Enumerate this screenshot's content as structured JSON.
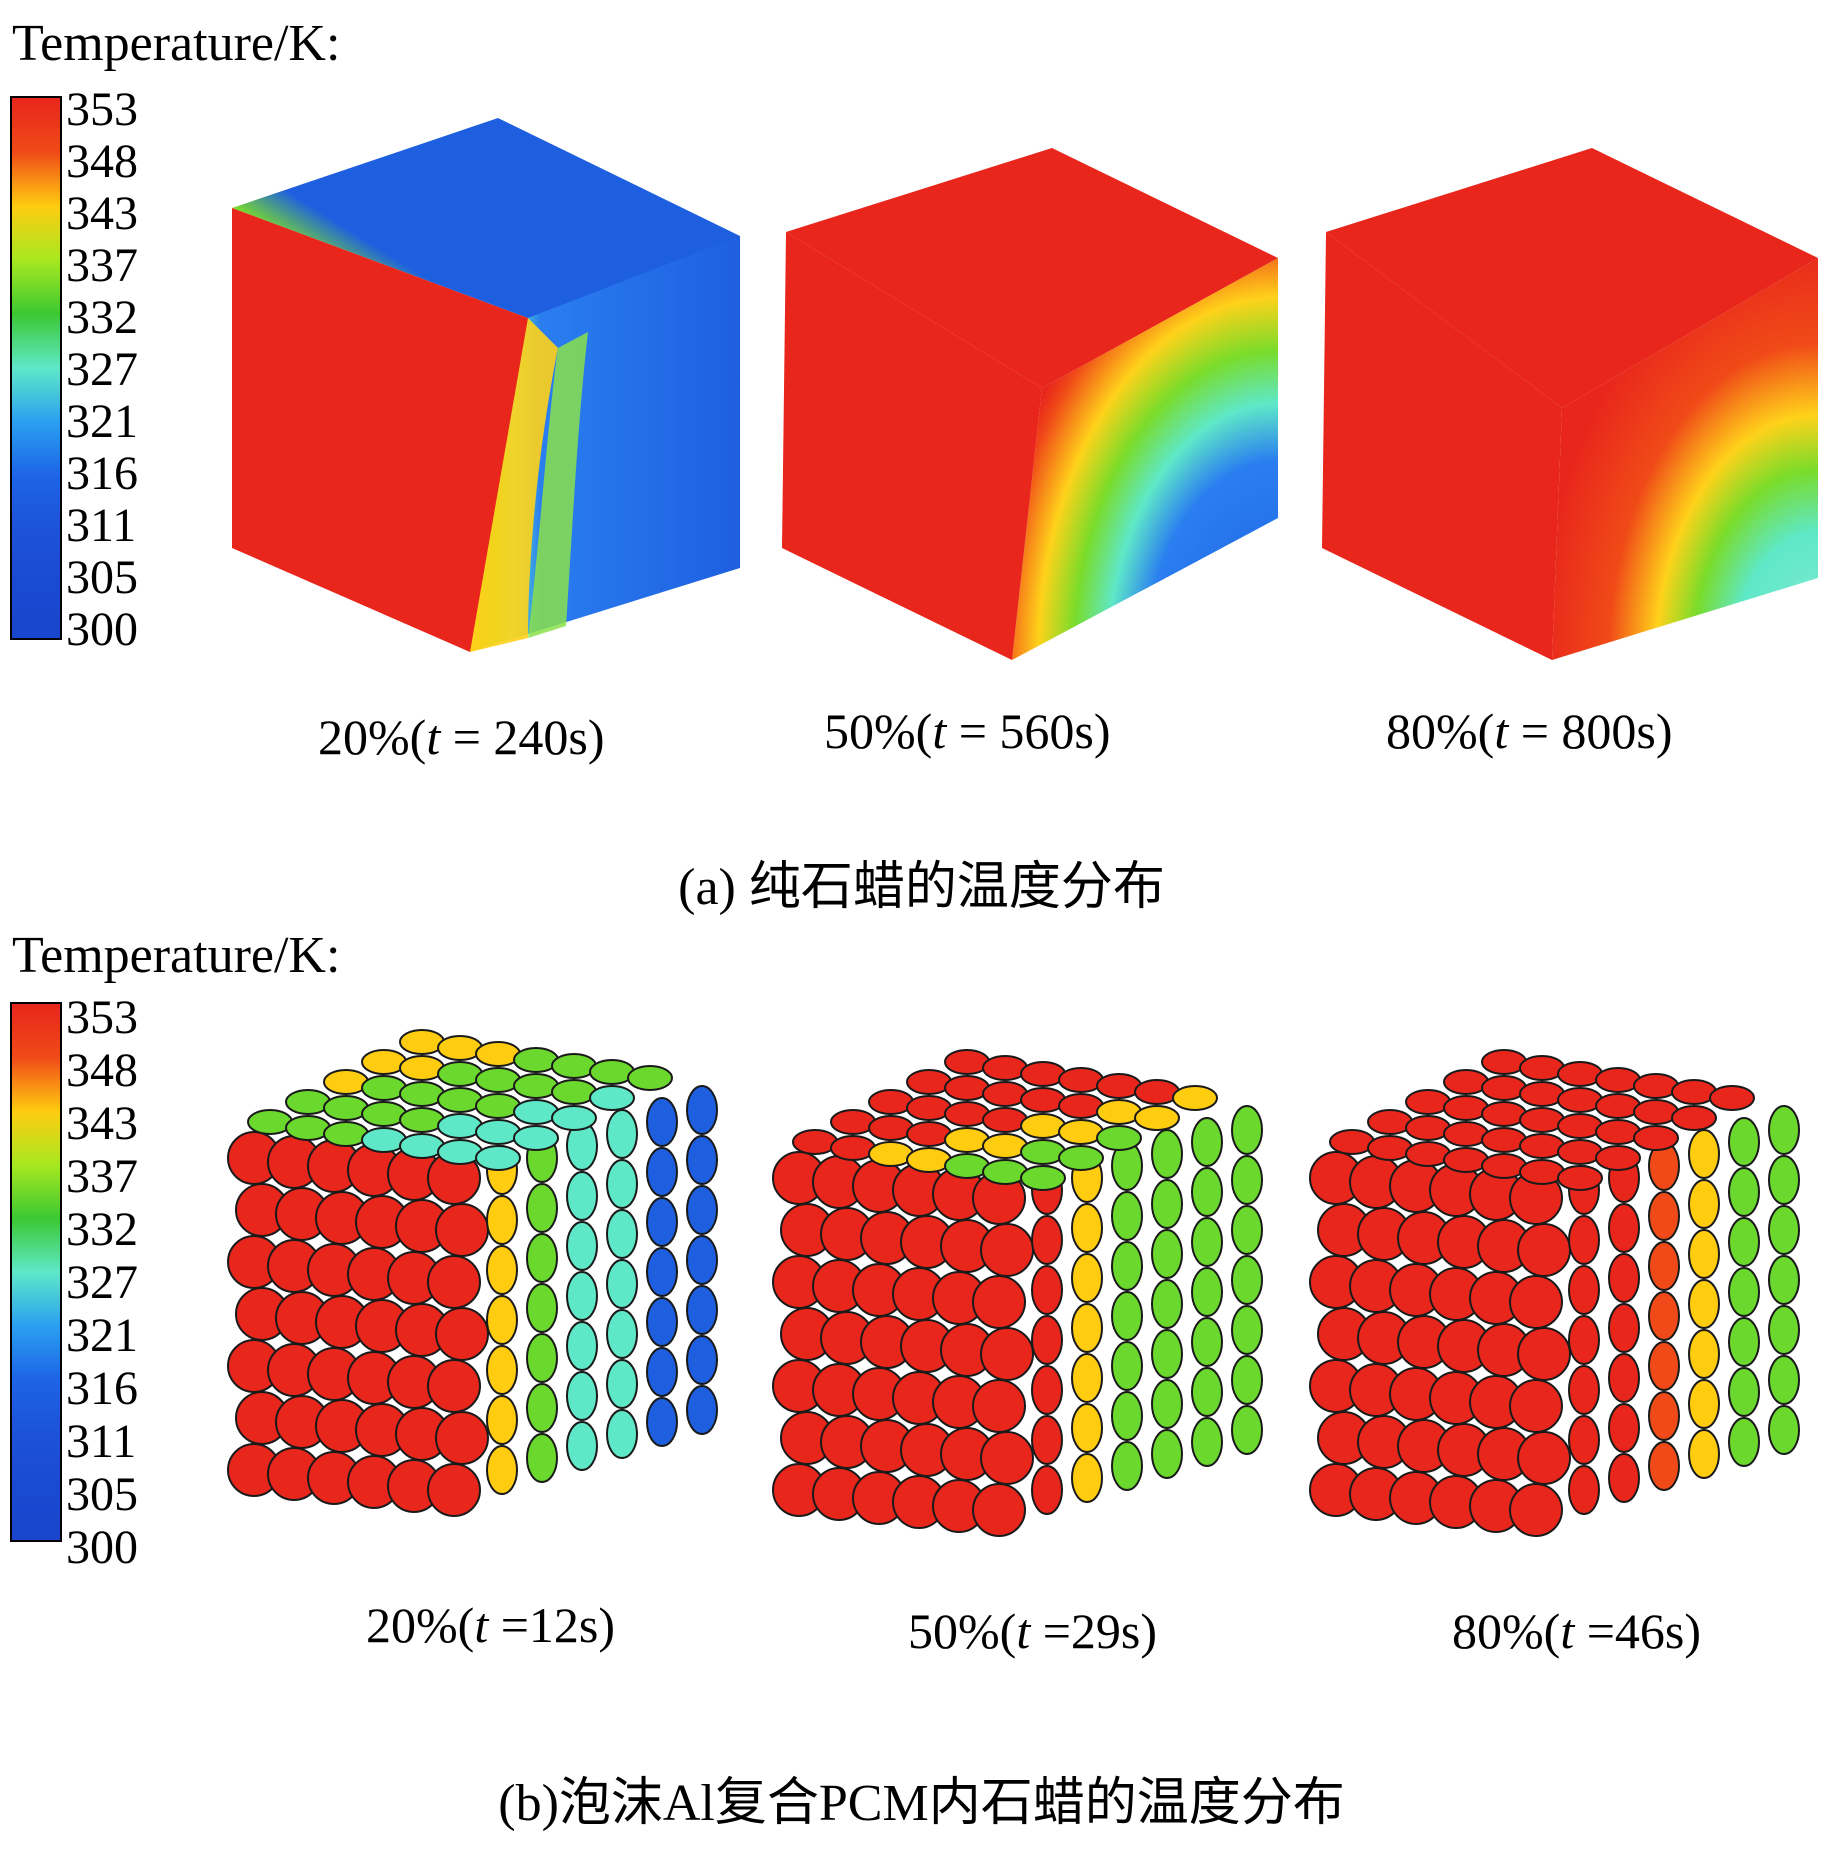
{
  "colors": {
    "hot": "#e8261c",
    "orange": "#f04a18",
    "yellow": "#ffcc10",
    "green": "#6ad82c",
    "cyan": "#5ee8c8",
    "cold": "#1e5fe0",
    "pore_edge": "#1a1a1a"
  },
  "panel_a": {
    "legend_title": "Temperature/K:",
    "legend_ticks": [
      "353",
      "348",
      "343",
      "337",
      "332",
      "327",
      "321",
      "316",
      "311",
      "305",
      "300"
    ],
    "states": [
      {
        "fraction": "20%",
        "t_value": "= 240s",
        "icon": "pure-paraffin-cube-20"
      },
      {
        "fraction": "50%",
        "t_value": "= 560s",
        "icon": "pure-paraffin-cube-50"
      },
      {
        "fraction": "80%",
        "t_value": "= 800s",
        "icon": "pure-paraffin-cube-80"
      }
    ],
    "caption": "(a) 纯石蜡的温度分布"
  },
  "panel_b": {
    "legend_title": "Temperature/K:",
    "legend_ticks": [
      "353",
      "348",
      "343",
      "337",
      "332",
      "327",
      "321",
      "316",
      "311",
      "305",
      "300"
    ],
    "states": [
      {
        "fraction": "20%",
        "t_value": "=12s",
        "icon": "foam-al-cube-20"
      },
      {
        "fraction": "50%",
        "t_value": "=29s",
        "icon": "foam-al-cube-50"
      },
      {
        "fraction": "80%",
        "t_value": "=46s",
        "icon": "foam-al-cube-80"
      }
    ],
    "caption": "(b)泡沫Al复合PCM内石蜡的温度分布"
  }
}
